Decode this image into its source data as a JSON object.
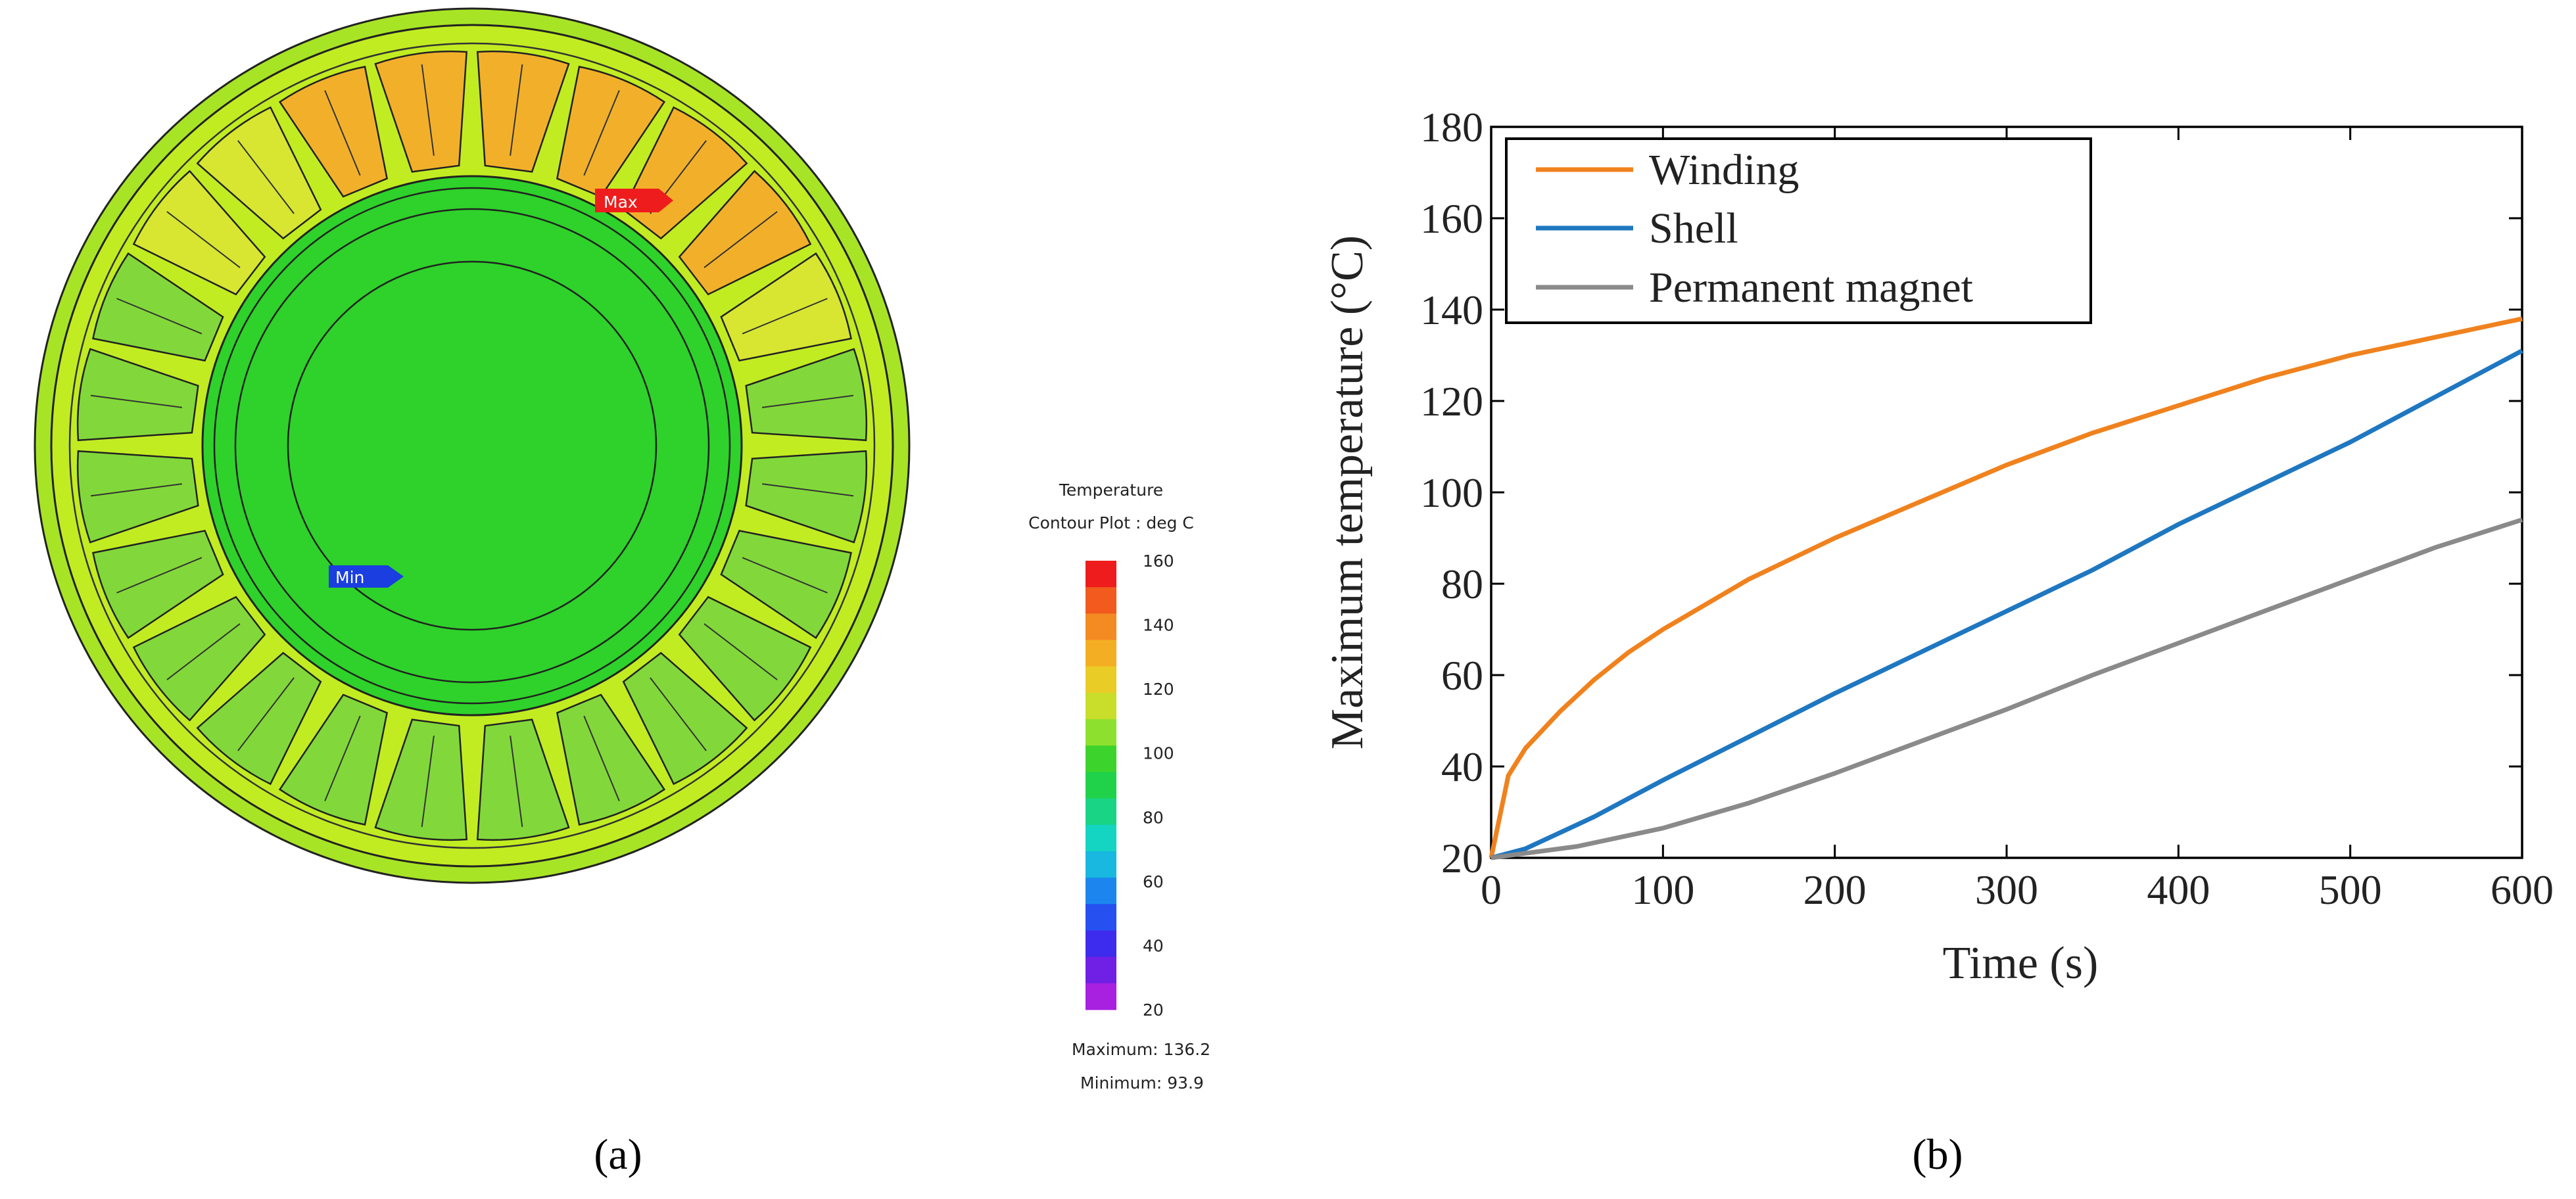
{
  "panel_a": {
    "caption": "(a)",
    "max_marker": "Max",
    "min_marker": "Min",
    "legend_title": "Temperature",
    "legend_subtitle": "Contour Plot : deg C",
    "legend_ticks": [
      "160",
      "140",
      "120",
      "100",
      "80",
      "60",
      "40",
      "20"
    ],
    "maximum_label": "Maximum: 136.2",
    "minimum_label": "Minimum: 93.9",
    "colors": {
      "stator_yoke": "#c2ec22",
      "outer_ring": "#a8e426",
      "rotor": "#2ed22a",
      "hot_slot": "#f2b02a",
      "warm_slot": "#d8e632",
      "cool_slot": "#82d83a",
      "max_flag": "#ee1c1c",
      "min_flag": "#1a3ee0"
    }
  },
  "panel_b": {
    "caption": "(b)"
  },
  "chart_data": {
    "type": "line",
    "title": "",
    "xlabel": "Time (s)",
    "ylabel": "Maximum temperature (°C)",
    "xlim": [
      0,
      600
    ],
    "ylim": [
      20,
      180
    ],
    "xticks": [
      0,
      100,
      200,
      300,
      400,
      500,
      600
    ],
    "yticks": [
      20,
      40,
      60,
      80,
      100,
      120,
      140,
      160,
      180
    ],
    "grid": false,
    "legend_position": "top-left",
    "series": [
      {
        "name": "Winding",
        "color": "#f0821e",
        "x": [
          0,
          10,
          20,
          40,
          60,
          80,
          100,
          150,
          200,
          250,
          300,
          350,
          400,
          450,
          500,
          550,
          600
        ],
        "y": [
          20,
          38,
          44,
          52,
          59,
          65,
          70,
          81,
          90,
          98,
          106,
          113,
          119,
          125,
          130,
          134,
          138
        ]
      },
      {
        "name": "Shell",
        "color": "#1f77c0",
        "x": [
          0,
          20,
          40,
          60,
          80,
          100,
          150,
          200,
          250,
          300,
          350,
          400,
          450,
          500,
          550,
          600
        ],
        "y": [
          20,
          22,
          25.5,
          29,
          33,
          37,
          46.5,
          56,
          65,
          74,
          83,
          93,
          102,
          111,
          121,
          131
        ]
      },
      {
        "name": "Permanent magnet",
        "color": "#8a8a8a",
        "x": [
          0,
          50,
          100,
          150,
          200,
          250,
          300,
          350,
          400,
          450,
          500,
          550,
          600
        ],
        "y": [
          20,
          22.5,
          26.5,
          32,
          38.5,
          45.5,
          52.5,
          60,
          67,
          74,
          81,
          88,
          94
        ]
      }
    ]
  }
}
